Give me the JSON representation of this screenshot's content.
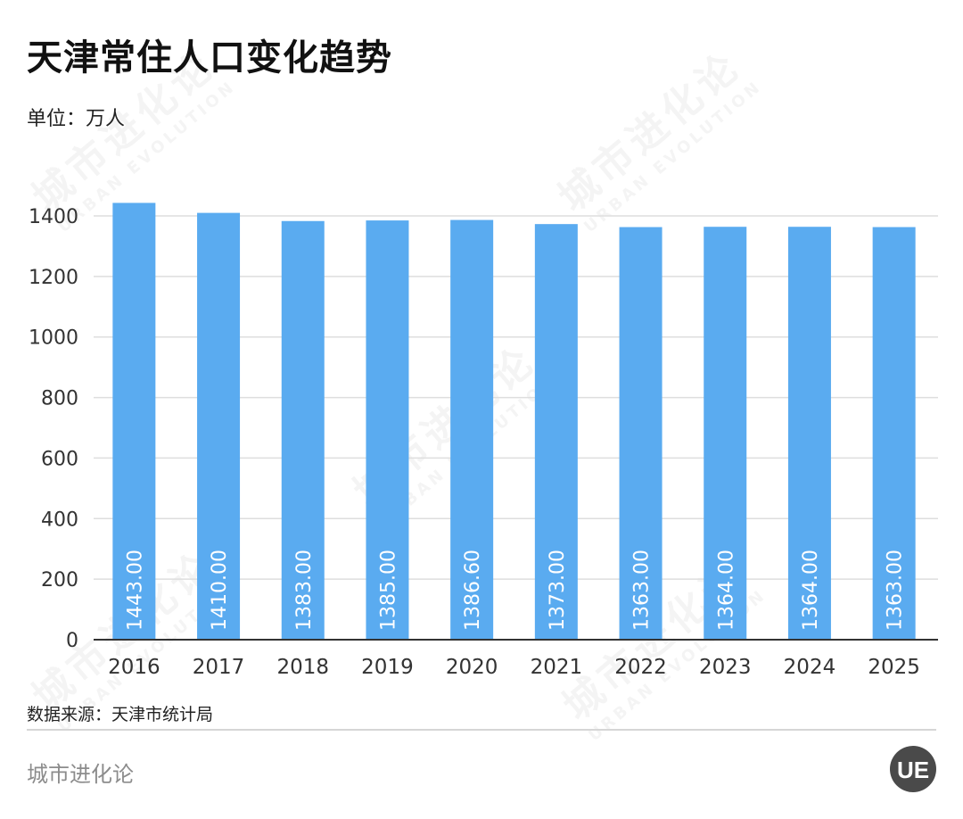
{
  "header": {
    "title": "天津常住人口变化趋势",
    "unit": "单位：万人"
  },
  "footer": {
    "source": "数据来源：天津市统计局",
    "brand": "城市进化论",
    "logo_text": "UE"
  },
  "watermark": {
    "cn": "城市进化论",
    "en": "URBAN EVOLUTION"
  },
  "colors": {
    "bar": "#5aabf0",
    "grid": "#dedede",
    "axis": "#333333"
  },
  "chart_data": {
    "type": "bar",
    "categories": [
      "2016",
      "2017",
      "2018",
      "2019",
      "2020",
      "2021",
      "2022",
      "2023",
      "2024",
      "2025"
    ],
    "values": [
      1443.0,
      1410.0,
      1383.0,
      1385.0,
      1386.6,
      1373.0,
      1363.0,
      1364.0,
      1364.0,
      1363.0
    ],
    "data_labels": [
      "1443.00",
      "1410.00",
      "1383.00",
      "1385.00",
      "1386.60",
      "1373.00",
      "1363.00",
      "1364.00",
      "1364.00",
      "1363.00"
    ],
    "title": "天津常住人口变化趋势",
    "ylabel": "单位：万人",
    "ylim": [
      0,
      1400
    ],
    "yticks": [
      0,
      200,
      400,
      600,
      800,
      1000,
      1200,
      1400
    ],
    "grid": true,
    "legend": "none"
  }
}
